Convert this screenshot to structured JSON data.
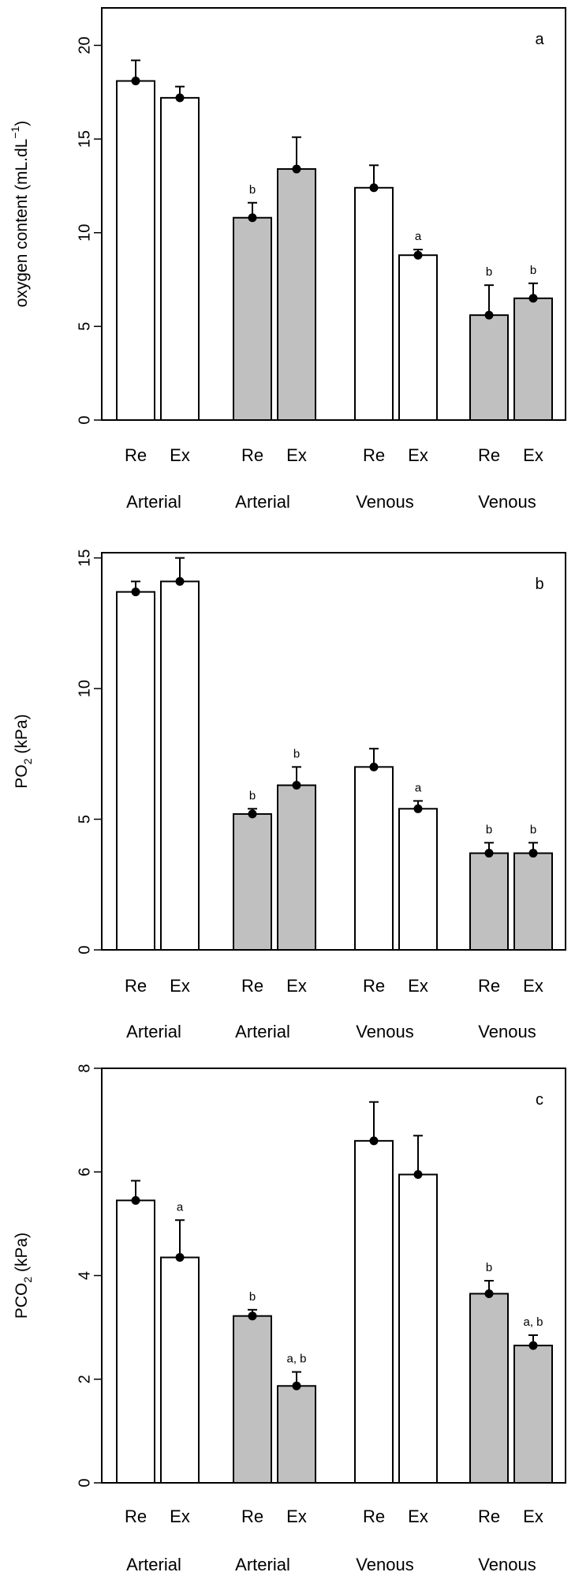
{
  "chart_data": [
    {
      "type": "bar",
      "panel": "a",
      "ylabel": "oxygen content (mL.dL",
      "ylabel_sup": "−1",
      "ylabel_suffix": ")",
      "ylim": [
        0,
        22
      ],
      "yticks": [
        0,
        5,
        10,
        15,
        20
      ],
      "categories": [
        "Re",
        "Ex",
        "Re",
        "Ex",
        "Re",
        "Ex",
        "Re",
        "Ex"
      ],
      "groups": [
        "Arterial",
        "Arterial",
        "Venous",
        "Venous"
      ],
      "values": [
        18.1,
        17.2,
        10.8,
        13.4,
        12.4,
        8.8,
        5.6,
        6.5
      ],
      "errors": [
        1.1,
        0.6,
        0.8,
        1.7,
        1.2,
        0.3,
        1.6,
        0.8
      ],
      "fills": [
        "white",
        "white",
        "gray",
        "gray",
        "white",
        "white",
        "gray",
        "gray"
      ],
      "sig": [
        "",
        "",
        "b",
        "",
        "",
        "a",
        "b",
        "b"
      ]
    },
    {
      "type": "bar",
      "panel": "b",
      "ylabel": "PO",
      "ylabel_sub": "2",
      "ylabel_suffix": " (kPa)",
      "ylim": [
        0,
        15.2
      ],
      "yticks": [
        0,
        5,
        10,
        15
      ],
      "categories": [
        "Re",
        "Ex",
        "Re",
        "Ex",
        "Re",
        "Ex",
        "Re",
        "Ex"
      ],
      "groups": [
        "Arterial",
        "Arterial",
        "Venous",
        "Venous"
      ],
      "values": [
        13.7,
        14.1,
        5.2,
        6.3,
        7.0,
        5.4,
        3.7,
        3.7
      ],
      "errors": [
        0.4,
        0.9,
        0.2,
        0.7,
        0.7,
        0.3,
        0.4,
        0.4
      ],
      "fills": [
        "white",
        "white",
        "gray",
        "gray",
        "white",
        "white",
        "gray",
        "gray"
      ],
      "sig": [
        "",
        "",
        "b",
        "b",
        "",
        "a",
        "b",
        "b"
      ]
    },
    {
      "type": "bar",
      "panel": "c",
      "ylabel": "PCO",
      "ylabel_sub": "2",
      "ylabel_suffix": " (kPa)",
      "ylim": [
        0,
        8
      ],
      "yticks": [
        0,
        2,
        4,
        6,
        8
      ],
      "categories": [
        "Re",
        "Ex",
        "Re",
        "Ex",
        "Re",
        "Ex",
        "Re",
        "Ex"
      ],
      "groups": [
        "Arterial",
        "Arterial",
        "Venous",
        "Venous"
      ],
      "values": [
        5.45,
        4.35,
        3.22,
        1.87,
        6.6,
        5.95,
        3.65,
        2.65
      ],
      "errors": [
        0.38,
        0.72,
        0.12,
        0.27,
        0.75,
        0.75,
        0.25,
        0.2
      ],
      "fills": [
        "white",
        "white",
        "gray",
        "gray",
        "white",
        "white",
        "gray",
        "gray"
      ],
      "sig": [
        "",
        "a",
        "b",
        "a, b",
        "",
        "",
        "b",
        "a, b"
      ]
    }
  ],
  "colors": {
    "gray_fill": "#c0c0c0",
    "white_fill": "#ffffff",
    "stroke": "#000000"
  }
}
